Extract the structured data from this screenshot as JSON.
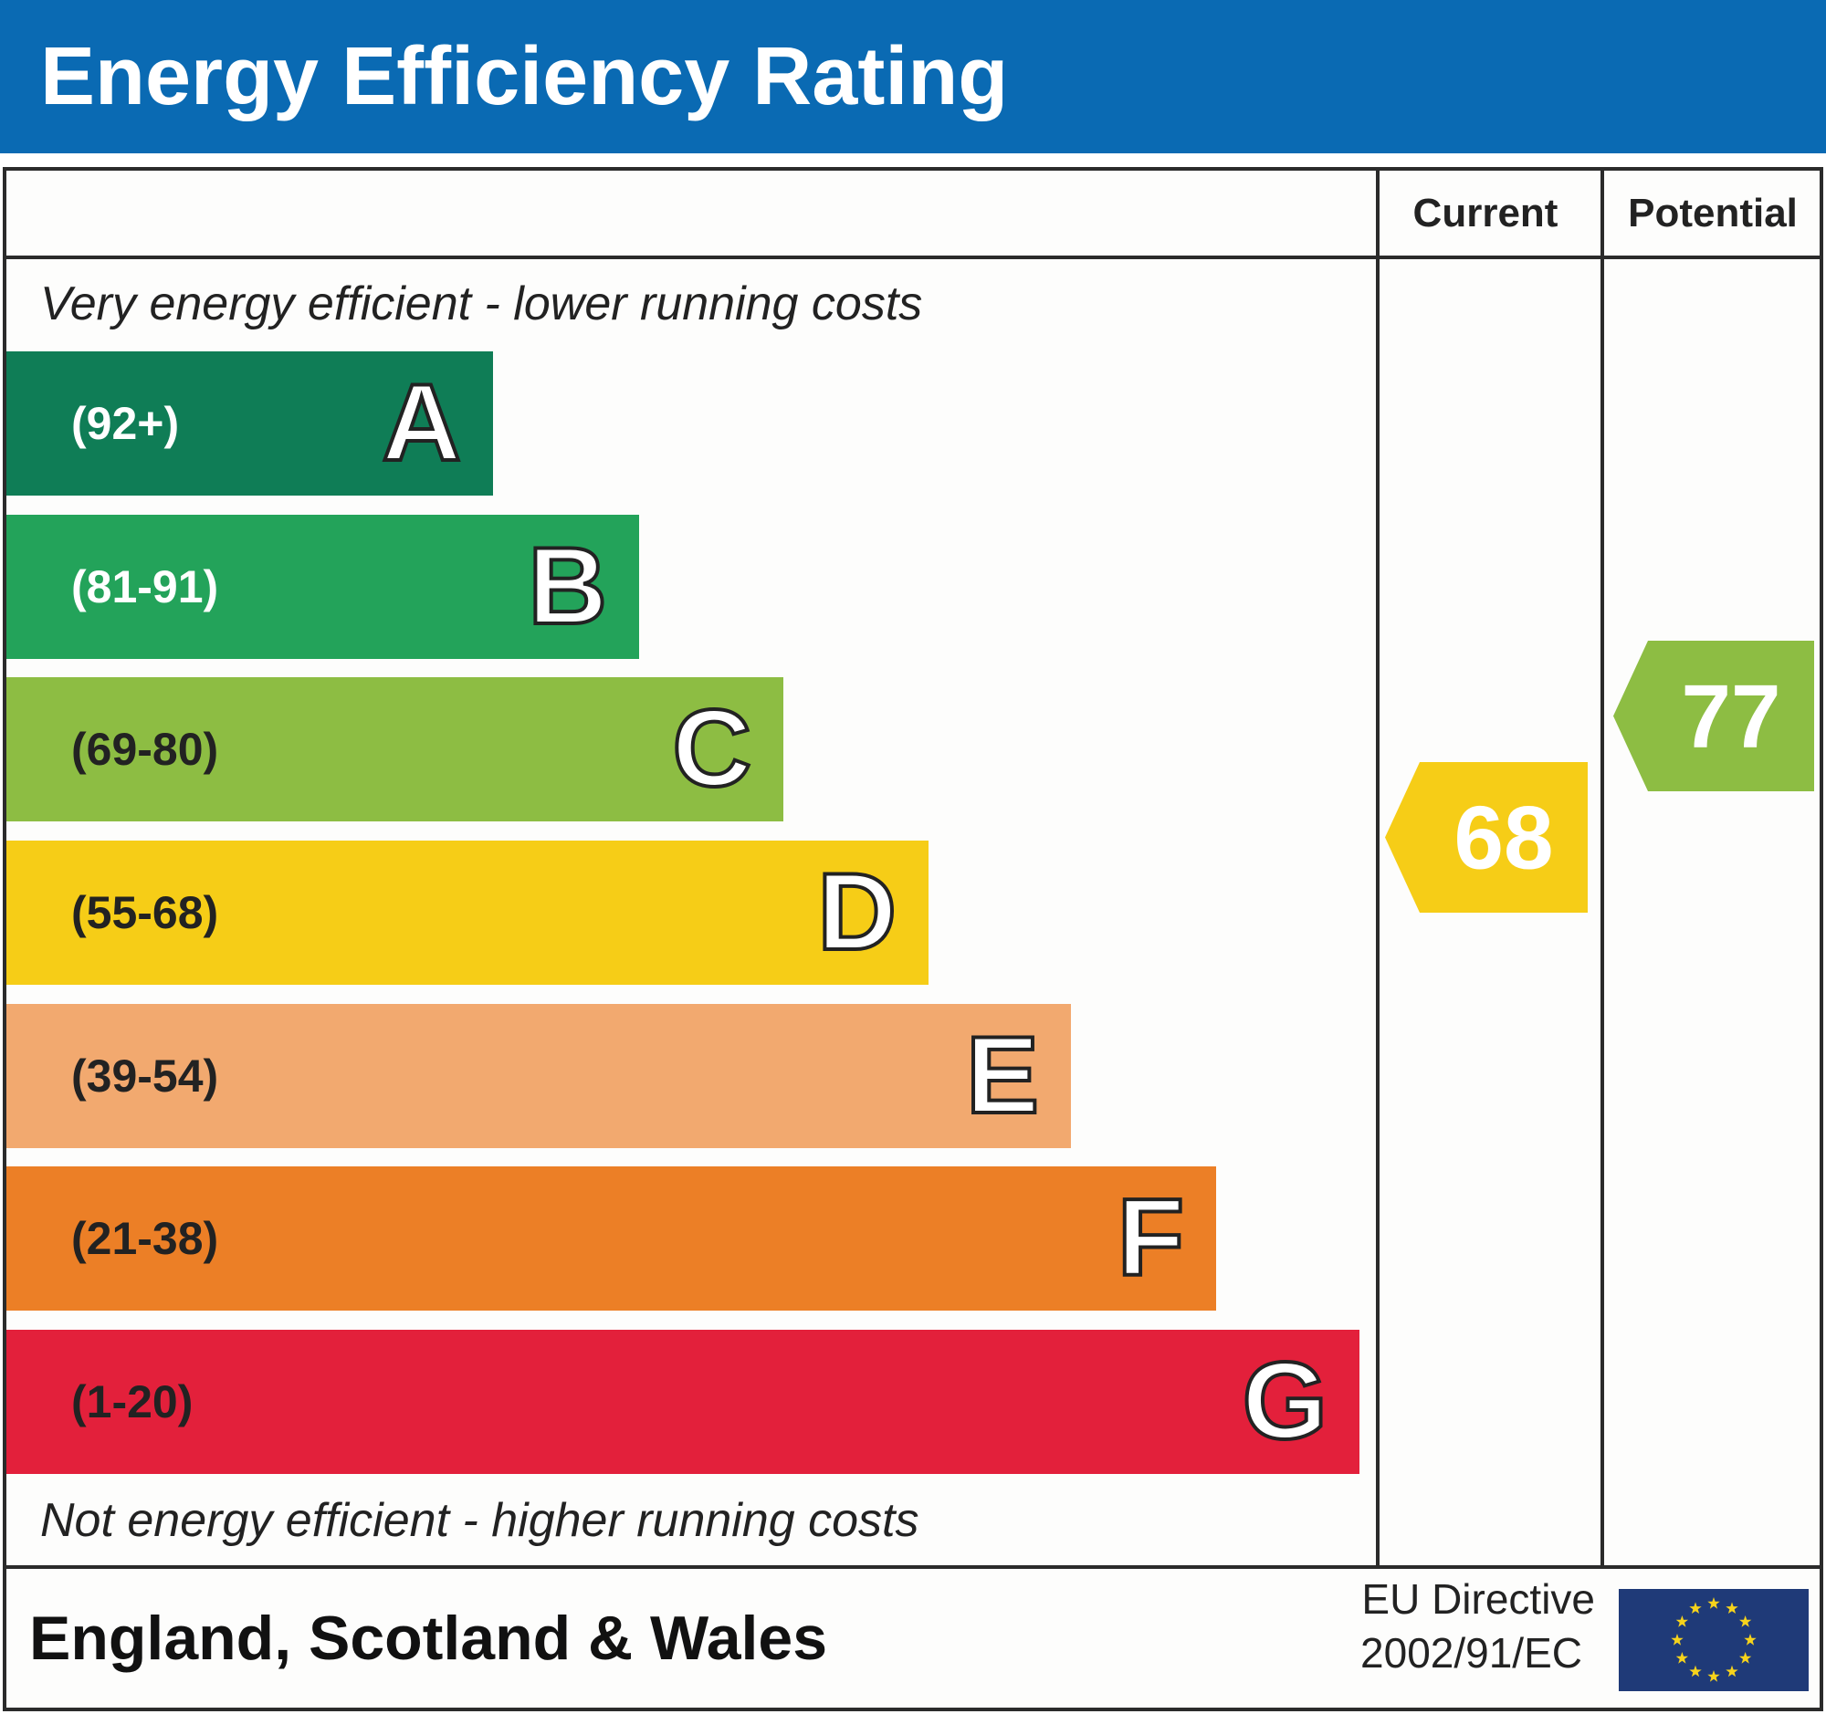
{
  "header": {
    "title": "Energy Efficiency Rating",
    "color": "#0a6ab3"
  },
  "columns": {
    "current": "Current",
    "potential": "Potential"
  },
  "top_note": "Very energy efficient - lower running costs",
  "bottom_note": "Not energy efficient - higher running costs",
  "footer": {
    "region": "England, Scotland & Wales",
    "directive_line1": "EU Directive",
    "directive_line2": "2002/91/EC",
    "flag_icon": "eu-flag-icon"
  },
  "chart_data": {
    "type": "bar",
    "title": "Energy Efficiency Rating",
    "bands": [
      {
        "letter": "A",
        "range": "(92+)",
        "color": "#0f7d56"
      },
      {
        "letter": "B",
        "range": "(81-91)",
        "color": "#23a35a"
      },
      {
        "letter": "C",
        "range": "(69-80)",
        "color": "#8dbd43"
      },
      {
        "letter": "D",
        "range": "(55-68)",
        "color": "#f6cd17"
      },
      {
        "letter": "E",
        "range": "(39-54)",
        "color": "#f2a96f"
      },
      {
        "letter": "F",
        "range": "(21-38)",
        "color": "#ec7f26"
      },
      {
        "letter": "G",
        "range": "(1-20)",
        "color": "#e3203b"
      }
    ],
    "current": {
      "value": "68",
      "band": "D",
      "color": "#f6cd17"
    },
    "potential": {
      "value": "77",
      "band": "C",
      "color": "#8dbd43"
    }
  }
}
